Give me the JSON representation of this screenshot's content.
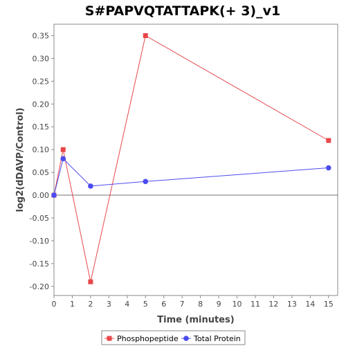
{
  "chart_data": {
    "type": "line",
    "title": "S#PAPVQTATTAPK(+ 3)_v1",
    "xlabel": "Time (minutes)",
    "ylabel": "log2(dDAVP/Control)",
    "xlim": [
      0,
      15.5
    ],
    "ylim": [
      -0.22,
      0.375
    ],
    "x_ticks": [
      "0",
      "1",
      "2",
      "3",
      "4",
      "5",
      "6",
      "7",
      "8",
      "9",
      "10",
      "11",
      "12",
      "13",
      "14",
      "15"
    ],
    "y_ticks": [
      "0.35",
      "0.30",
      "0.25",
      "0.20",
      "0.15",
      "0.10",
      "0.05",
      "0.00",
      "-0.05",
      "-0.10",
      "-0.15",
      "-0.20"
    ],
    "x_tick_values": [
      0,
      1,
      2,
      3,
      4,
      5,
      6,
      7,
      8,
      9,
      10,
      11,
      12,
      13,
      14,
      15
    ],
    "y_tick_values": [
      0.35,
      0.3,
      0.25,
      0.2,
      0.15,
      0.1,
      0.05,
      0.0,
      -0.05,
      -0.1,
      -0.15,
      -0.2
    ],
    "zero_line": true,
    "grid": false,
    "legend_position": "bottom",
    "series": [
      {
        "name": "Phosphopeptide",
        "color": "#e8474a",
        "marker": "square",
        "x": [
          0,
          0.5,
          2,
          5,
          15
        ],
        "y": [
          0,
          0.1,
          -0.19,
          0.35,
          0.12
        ]
      },
      {
        "name": "Total Protein",
        "color": "#4b4bf0",
        "marker": "circle",
        "x": [
          0,
          0.5,
          2,
          5,
          15
        ],
        "y": [
          0,
          0.08,
          0.02,
          0.03,
          0.06
        ]
      }
    ]
  }
}
